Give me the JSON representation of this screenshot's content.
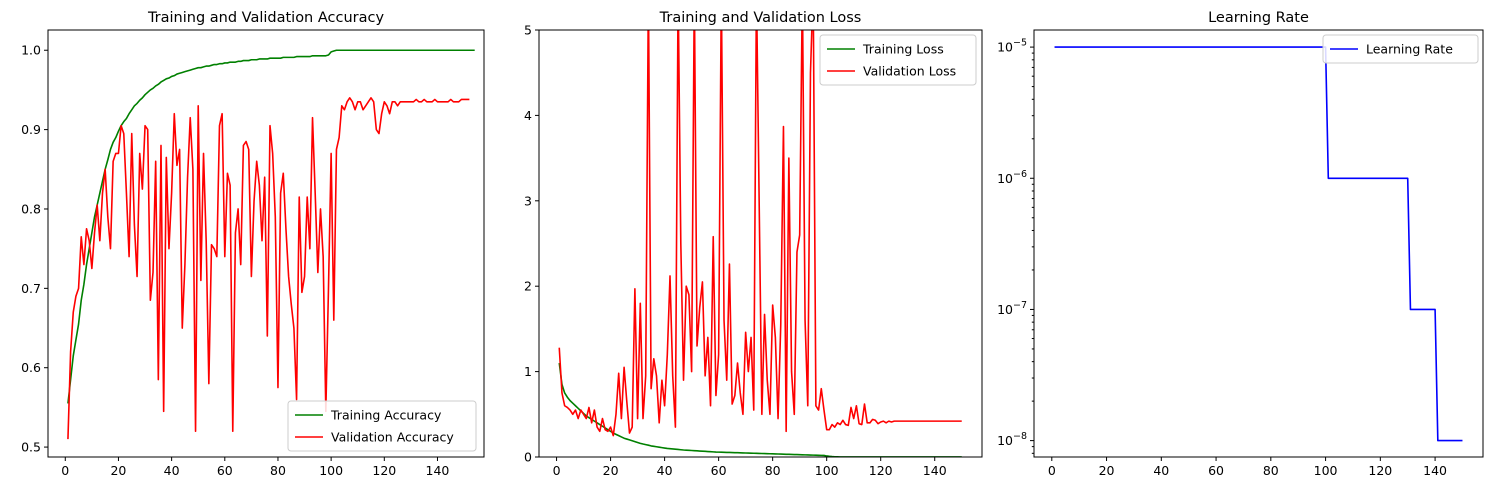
{
  "chart_data": [
    {
      "type": "line",
      "title": "Training and Validation Accuracy",
      "xlabel": "",
      "ylabel": "",
      "xlim": [
        -6.5,
        157.5
      ],
      "ylim": [
        0.4875,
        1.0255
      ],
      "xticks": [
        0,
        20,
        40,
        60,
        80,
        100,
        120,
        140
      ],
      "yticks": [
        0.5,
        0.6,
        0.7,
        0.8,
        0.9,
        1.0
      ],
      "ytick_labels": [
        "0.5",
        "0.6",
        "0.7",
        "0.8",
        "0.9",
        "1.0"
      ],
      "legend_position": "lower-right",
      "series": [
        {
          "name": "Training Accuracy",
          "color": "#008000",
          "x_start": 1,
          "values": [
            0.555,
            0.585,
            0.615,
            0.635,
            0.655,
            0.685,
            0.705,
            0.73,
            0.75,
            0.77,
            0.79,
            0.805,
            0.82,
            0.835,
            0.85,
            0.862,
            0.875,
            0.884,
            0.89,
            0.898,
            0.905,
            0.91,
            0.914,
            0.92,
            0.925,
            0.93,
            0.933,
            0.937,
            0.94,
            0.944,
            0.947,
            0.95,
            0.952,
            0.955,
            0.957,
            0.96,
            0.962,
            0.964,
            0.965,
            0.967,
            0.968,
            0.97,
            0.971,
            0.972,
            0.973,
            0.974,
            0.975,
            0.976,
            0.977,
            0.978,
            0.978,
            0.979,
            0.98,
            0.98,
            0.981,
            0.982,
            0.982,
            0.983,
            0.983,
            0.984,
            0.984,
            0.985,
            0.985,
            0.985,
            0.986,
            0.986,
            0.987,
            0.987,
            0.987,
            0.988,
            0.988,
            0.988,
            0.989,
            0.989,
            0.989,
            0.989,
            0.99,
            0.99,
            0.99,
            0.99,
            0.99,
            0.991,
            0.991,
            0.991,
            0.991,
            0.991,
            0.992,
            0.992,
            0.992,
            0.992,
            0.992,
            0.992,
            0.993,
            0.993,
            0.993,
            0.993,
            0.993,
            0.993,
            0.994,
            0.998,
            0.999,
            1.0,
            1.0,
            1.0,
            1.0,
            1.0,
            1.0,
            1.0,
            1.0,
            1.0,
            1.0,
            1.0,
            1.0,
            1.0,
            1.0,
            1.0,
            1.0,
            1.0,
            1.0,
            1.0,
            1.0,
            1.0,
            1.0,
            1.0,
            1.0,
            1.0,
            1.0,
            1.0,
            1.0,
            1.0,
            1.0,
            1.0,
            1.0,
            1.0,
            1.0,
            1.0,
            1.0,
            1.0,
            1.0,
            1.0,
            1.0,
            1.0,
            1.0,
            1.0,
            1.0,
            1.0,
            1.0,
            1.0,
            1.0,
            1.0,
            1.0,
            1.0,
            1.0,
            1.0
          ]
        },
        {
          "name": "Validation Accuracy",
          "color": "#ff0000",
          "x_start": 1,
          "values": [
            0.51,
            0.62,
            0.67,
            0.69,
            0.7,
            0.765,
            0.73,
            0.775,
            0.76,
            0.725,
            0.77,
            0.805,
            0.76,
            0.82,
            0.85,
            0.79,
            0.75,
            0.86,
            0.87,
            0.87,
            0.905,
            0.895,
            0.82,
            0.74,
            0.895,
            0.78,
            0.715,
            0.87,
            0.825,
            0.905,
            0.9,
            0.685,
            0.72,
            0.86,
            0.585,
            0.88,
            0.545,
            0.865,
            0.75,
            0.82,
            0.92,
            0.855,
            0.875,
            0.65,
            0.73,
            0.84,
            0.915,
            0.85,
            0.52,
            0.93,
            0.71,
            0.87,
            0.76,
            0.58,
            0.755,
            0.75,
            0.74,
            0.905,
            0.92,
            0.74,
            0.845,
            0.83,
            0.52,
            0.77,
            0.8,
            0.73,
            0.88,
            0.885,
            0.875,
            0.715,
            0.81,
            0.86,
            0.83,
            0.76,
            0.84,
            0.64,
            0.905,
            0.87,
            0.79,
            0.575,
            0.82,
            0.845,
            0.775,
            0.715,
            0.68,
            0.65,
            0.56,
            0.815,
            0.695,
            0.715,
            0.815,
            0.75,
            0.915,
            0.82,
            0.72,
            0.8,
            0.74,
            0.545,
            0.7,
            0.87,
            0.66,
            0.875,
            0.89,
            0.93,
            0.925,
            0.935,
            0.94,
            0.935,
            0.925,
            0.935,
            0.935,
            0.925,
            0.93,
            0.935,
            0.94,
            0.935,
            0.9,
            0.895,
            0.92,
            0.935,
            0.93,
            0.92,
            0.935,
            0.935,
            0.93,
            0.935,
            0.935,
            0.935,
            0.935,
            0.935,
            0.935,
            0.938,
            0.935,
            0.935,
            0.938,
            0.935,
            0.935,
            0.935,
            0.938,
            0.935,
            0.935,
            0.935,
            0.935,
            0.935,
            0.938,
            0.935,
            0.935,
            0.935,
            0.938,
            0.938,
            0.938,
            0.938
          ]
        }
      ]
    },
    {
      "type": "line",
      "title": "Training and Validation Loss",
      "xlabel": "",
      "ylabel": "",
      "xlim": [
        -6.5,
        157.5
      ],
      "ylim": [
        0,
        5
      ],
      "xticks": [
        0,
        20,
        40,
        60,
        80,
        100,
        120,
        140
      ],
      "yticks": [
        0,
        1,
        2,
        3,
        4,
        5
      ],
      "ytick_labels": [
        "0",
        "1",
        "2",
        "3",
        "4",
        "5"
      ],
      "legend_position": "upper-right",
      "series": [
        {
          "name": "Training Loss",
          "color": "#008000",
          "x_start": 1,
          "values": [
            1.1,
            0.85,
            0.75,
            0.7,
            0.66,
            0.63,
            0.6,
            0.57,
            0.54,
            0.51,
            0.48,
            0.46,
            0.44,
            0.42,
            0.4,
            0.38,
            0.36,
            0.34,
            0.32,
            0.3,
            0.28,
            0.265,
            0.25,
            0.235,
            0.22,
            0.21,
            0.2,
            0.19,
            0.18,
            0.17,
            0.16,
            0.152,
            0.145,
            0.138,
            0.13,
            0.125,
            0.12,
            0.115,
            0.11,
            0.105,
            0.1,
            0.097,
            0.094,
            0.091,
            0.088,
            0.085,
            0.082,
            0.08,
            0.078,
            0.076,
            0.074,
            0.072,
            0.07,
            0.068,
            0.066,
            0.064,
            0.062,
            0.06,
            0.058,
            0.057,
            0.056,
            0.055,
            0.054,
            0.053,
            0.052,
            0.051,
            0.05,
            0.049,
            0.048,
            0.047,
            0.046,
            0.045,
            0.044,
            0.043,
            0.042,
            0.041,
            0.04,
            0.039,
            0.038,
            0.037,
            0.036,
            0.035,
            0.034,
            0.033,
            0.032,
            0.031,
            0.03,
            0.029,
            0.028,
            0.027,
            0.026,
            0.025,
            0.024,
            0.023,
            0.022,
            0.021,
            0.02,
            0.019,
            0.018,
            0.012,
            0.008,
            0.005,
            0.003,
            0.002,
            0.001,
            0.001,
            0.001,
            0.001,
            0.001,
            0.001,
            0.001,
            0.001,
            0.001,
            0.001,
            0.001,
            0.001,
            0.001,
            0.001,
            0.001,
            0.001,
            0.001,
            0.001,
            0.001,
            0.001,
            0.001,
            0.001,
            0.001,
            0.001,
            0.001,
            0.001,
            0.001,
            0.001,
            0.001,
            0.001,
            0.001,
            0.001,
            0.001,
            0.001,
            0.001,
            0.001,
            0.001,
            0.001,
            0.001,
            0.001,
            0.001,
            0.001,
            0.001,
            0.001,
            0.001,
            0.001
          ]
        },
        {
          "name": "Validation Loss",
          "color": "#ff0000",
          "x_start": 1,
          "values": [
            1.28,
            0.75,
            0.6,
            0.58,
            0.55,
            0.5,
            0.55,
            0.45,
            0.55,
            0.5,
            0.45,
            0.58,
            0.4,
            0.55,
            0.35,
            0.3,
            0.45,
            0.32,
            0.3,
            0.35,
            0.25,
            0.5,
            0.98,
            0.45,
            1.05,
            0.65,
            0.28,
            0.35,
            1.97,
            0.45,
            1.8,
            0.45,
            0.95,
            5.5,
            0.8,
            1.15,
            0.95,
            0.4,
            0.9,
            0.6,
            1.2,
            2.12,
            0.95,
            0.35,
            5.5,
            2.5,
            0.9,
            2.0,
            1.9,
            1.0,
            5.5,
            1.3,
            1.75,
            2.05,
            0.95,
            1.4,
            0.6,
            2.58,
            0.72,
            1.2,
            5.5,
            1.6,
            0.9,
            2.26,
            0.62,
            0.72,
            1.1,
            0.75,
            0.5,
            1.46,
            1.0,
            1.4,
            0.55,
            5.5,
            3.0,
            0.5,
            1.67,
            0.9,
            0.5,
            1.78,
            1.4,
            0.45,
            1.55,
            3.87,
            0.3,
            3.5,
            1.0,
            0.5,
            2.4,
            2.6,
            5.5,
            1.6,
            0.6,
            4.5,
            5.5,
            0.6,
            0.55,
            0.8,
            0.55,
            0.32,
            0.32,
            0.38,
            0.35,
            0.4,
            0.38,
            0.43,
            0.38,
            0.37,
            0.58,
            0.45,
            0.6,
            0.39,
            0.38,
            0.62,
            0.4,
            0.4,
            0.44,
            0.43,
            0.39,
            0.41,
            0.42,
            0.4,
            0.42,
            0.41,
            0.42,
            0.42,
            0.42,
            0.42,
            0.42,
            0.42,
            0.42,
            0.42,
            0.42,
            0.42,
            0.42,
            0.42,
            0.42,
            0.42,
            0.42,
            0.42,
            0.42,
            0.42,
            0.42,
            0.42,
            0.42,
            0.42,
            0.42,
            0.42,
            0.42,
            0.42
          ]
        }
      ]
    },
    {
      "type": "line",
      "title": "Learning Rate",
      "xlabel": "",
      "ylabel": "",
      "yscale": "log",
      "xlim": [
        -6.5,
        157.5
      ],
      "ylim": [
        7.5e-09,
        1.35e-05
      ],
      "xticks": [
        0,
        20,
        40,
        60,
        80,
        100,
        120,
        140
      ],
      "yticks": [
        1e-08,
        1e-07,
        1e-06,
        1e-05
      ],
      "ytick_labels": [
        [
          "10",
          "−8"
        ],
        [
          "10",
          "−7"
        ],
        [
          "10",
          "−6"
        ],
        [
          "10",
          "−5"
        ]
      ],
      "legend_position": "upper-right",
      "series": [
        {
          "name": "Learning Rate",
          "color": "#0000ff",
          "x": [
            1,
            100,
            101,
            130,
            131,
            140,
            141,
            150
          ],
          "values": [
            1e-05,
            1e-05,
            1e-06,
            1e-06,
            1e-07,
            1e-07,
            1e-08,
            1e-08
          ]
        }
      ]
    }
  ]
}
